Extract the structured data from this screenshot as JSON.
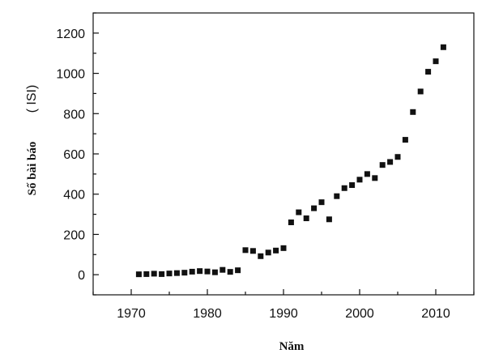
{
  "chart_data": {
    "type": "scatter",
    "title": "",
    "xlabel": "Năm",
    "ylabel_main": "Số bài báo",
    "ylabel_unit": "( ISI)",
    "xlim": [
      1965,
      2015
    ],
    "ylim": [
      -100,
      1300
    ],
    "xticks": [
      1970,
      1980,
      1990,
      2000,
      2010
    ],
    "yticks": [
      0,
      200,
      400,
      600,
      800,
      1000,
      1200
    ],
    "grid": false,
    "marker": "square",
    "marker_color": "#111111",
    "series": [
      {
        "x": [
          1971,
          1972,
          1973,
          1974,
          1975,
          1976,
          1977,
          1978,
          1979,
          1980,
          1981,
          1982,
          1983,
          1984,
          1985,
          1986,
          1987,
          1988,
          1989,
          1990,
          1991,
          1992,
          1993,
          1994,
          1995,
          1996,
          1997,
          1998,
          1999,
          2000,
          2001,
          2002,
          2003,
          2004,
          2005,
          2006,
          2007,
          2008,
          2009,
          2010,
          2011
        ],
        "y": [
          2,
          3,
          5,
          3,
          6,
          8,
          10,
          15,
          18,
          16,
          12,
          24,
          14,
          22,
          122,
          118,
          92,
          110,
          120,
          132,
          260,
          310,
          280,
          330,
          360,
          275,
          390,
          430,
          445,
          472,
          500,
          480,
          545,
          560,
          585,
          670,
          808,
          910,
          1008,
          1060,
          1130
        ]
      }
    ]
  }
}
